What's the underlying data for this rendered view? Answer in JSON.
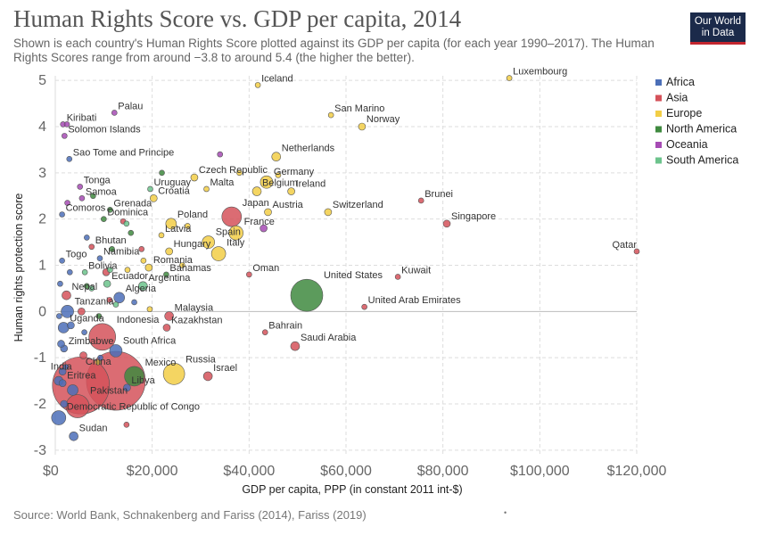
{
  "header": {
    "title": "Human Rights Score vs. GDP per capita, 2014",
    "subtitle": "Shown is each country's Human Rights Score plotted against its GDP per capita (for each year 1990–2017). The Human Rights Scores range from around −3.8 to around 5.4 (the higher the better).",
    "logo_line1": "Our World",
    "logo_line2": "in Data"
  },
  "footer": {
    "source": "Source: World Bank, Schnakenberg and Fariss (2014), Fariss (2019)",
    "dot": "•"
  },
  "colors": {
    "Africa": "#4c6fb8",
    "Asia": "#d5525a",
    "Europe": "#f2ce46",
    "North America": "#3f8a3f",
    "Oceania": "#a64bb4",
    "South America": "#6cc38c"
  },
  "chart_data": {
    "type": "scatter",
    "title": "Human Rights Score vs. GDP per capita, 2014",
    "xlabel": "GDP per capita, PPP (in constant 2011 int-$)",
    "ylabel": "Human rights protection score",
    "xlim": [
      0,
      120000
    ],
    "ylim": [
      -3.1,
      5.1
    ],
    "x_ticks": [
      0,
      20000,
      40000,
      60000,
      80000,
      100000,
      120000
    ],
    "x_tick_labels": [
      "$0",
      "$20,000",
      "$40,000",
      "$60,000",
      "$80,000",
      "$100,000",
      "$120,000"
    ],
    "y_ticks": [
      -3,
      -2,
      -1,
      0,
      1,
      2,
      3,
      4,
      5
    ],
    "y_tick_labels": [
      "-3",
      "-2",
      "-1",
      "0",
      "1",
      "2",
      "3",
      "4",
      "5"
    ],
    "grid": true,
    "legend_position": "right",
    "legend": [
      "Africa",
      "Asia",
      "Europe",
      "North America",
      "Oceania",
      "South America"
    ],
    "points": [
      {
        "label": "Iceland",
        "x": 41800,
        "y": 4.9,
        "region": "Europe",
        "size": 3
      },
      {
        "label": "Luxembourg",
        "x": 93700,
        "y": 5.05,
        "region": "Europe",
        "size": 3
      },
      {
        "label": "San Marino",
        "x": 56900,
        "y": 4.25,
        "region": "Europe",
        "size": 3
      },
      {
        "label": "Norway",
        "x": 63300,
        "y": 4.0,
        "region": "Europe",
        "size": 4
      },
      {
        "label": "Palau",
        "x": 12200,
        "y": 4.3,
        "region": "Oceania",
        "size": 3
      },
      {
        "label": "Kiribati",
        "x": 1600,
        "y": 4.05,
        "region": "Oceania",
        "size": 3
      },
      {
        "label": "Solomon Islands",
        "x": 1900,
        "y": 3.8,
        "region": "Oceania",
        "size": 3
      },
      {
        "label": "Sao Tome and Principe",
        "x": 2900,
        "y": 3.3,
        "region": "Africa",
        "size": 3
      },
      {
        "label": "Netherlands",
        "x": 45600,
        "y": 3.35,
        "region": "Europe",
        "size": 5
      },
      {
        "label": "Czech Republic",
        "x": 28700,
        "y": 2.9,
        "region": "Europe",
        "size": 4
      },
      {
        "label": "Germany",
        "x": 43600,
        "y": 2.8,
        "region": "Europe",
        "size": 7
      },
      {
        "label": "Malta",
        "x": 31200,
        "y": 2.65,
        "region": "Europe",
        "size": 3
      },
      {
        "label": "Belgium",
        "x": 41600,
        "y": 2.6,
        "region": "Europe",
        "size": 5
      },
      {
        "label": "Ireland",
        "x": 48700,
        "y": 2.6,
        "region": "Europe",
        "size": 4
      },
      {
        "label": "Uruguay",
        "x": 19600,
        "y": 2.65,
        "region": "South America",
        "size": 3
      },
      {
        "label": "Tonga",
        "x": 5100,
        "y": 2.7,
        "region": "Oceania",
        "size": 3
      },
      {
        "label": "Samoa",
        "x": 5500,
        "y": 2.45,
        "region": "Oceania",
        "size": 3
      },
      {
        "label": "Croatia",
        "x": 20300,
        "y": 2.45,
        "region": "Europe",
        "size": 4
      },
      {
        "label": "Brunei",
        "x": 75500,
        "y": 2.4,
        "region": "Asia",
        "size": 3
      },
      {
        "label": "Grenada",
        "x": 11300,
        "y": 2.2,
        "region": "North America",
        "size": 3
      },
      {
        "label": "Comoros",
        "x": 1400,
        "y": 2.1,
        "region": "Africa",
        "size": 3
      },
      {
        "label": "Dominica",
        "x": 10000,
        "y": 2.0,
        "region": "North America",
        "size": 3
      },
      {
        "label": "Japan",
        "x": 36400,
        "y": 2.05,
        "region": "Asia",
        "size": 11
      },
      {
        "label": "Austria",
        "x": 43900,
        "y": 2.15,
        "region": "Europe",
        "size": 4
      },
      {
        "label": "Switzerland",
        "x": 56300,
        "y": 2.15,
        "region": "Europe",
        "size": 4
      },
      {
        "label": "Singapore",
        "x": 80800,
        "y": 1.9,
        "region": "Asia",
        "size": 4
      },
      {
        "label": "Poland",
        "x": 23900,
        "y": 1.9,
        "region": "Europe",
        "size": 6
      },
      {
        "label": "France",
        "x": 37300,
        "y": 1.7,
        "region": "Europe",
        "size": 8
      },
      {
        "label": "Latvia",
        "x": 21900,
        "y": 1.65,
        "region": "Europe",
        "size": 3
      },
      {
        "label": "Spain",
        "x": 31600,
        "y": 1.5,
        "region": "Europe",
        "size": 7
      },
      {
        "label": "Qatar",
        "x": 120000,
        "y": 1.3,
        "region": "Asia",
        "size": 3
      },
      {
        "label": "Bhutan",
        "x": 7500,
        "y": 1.4,
        "region": "Asia",
        "size": 3
      },
      {
        "label": "Hungary",
        "x": 23500,
        "y": 1.3,
        "region": "Europe",
        "size": 4
      },
      {
        "label": "Namibia",
        "x": 9200,
        "y": 1.15,
        "region": "Africa",
        "size": 3
      },
      {
        "label": "Italy",
        "x": 33700,
        "y": 1.25,
        "region": "Europe",
        "size": 8
      },
      {
        "label": "Togo",
        "x": 1400,
        "y": 1.1,
        "region": "Africa",
        "size": 3
      },
      {
        "label": "Romania",
        "x": 19300,
        "y": 0.95,
        "region": "Europe",
        "size": 4
      },
      {
        "label": "Bolivia",
        "x": 6100,
        "y": 0.85,
        "region": "South America",
        "size": 3
      },
      {
        "label": "Bahamas",
        "x": 22900,
        "y": 0.8,
        "region": "North America",
        "size": 3
      },
      {
        "label": "Oman",
        "x": 40000,
        "y": 0.8,
        "region": "Asia",
        "size": 3
      },
      {
        "label": "Ecuador",
        "x": 10700,
        "y": 0.6,
        "region": "South America",
        "size": 4
      },
      {
        "label": "Argentina",
        "x": 18100,
        "y": 0.55,
        "region": "South America",
        "size": 5
      },
      {
        "label": "Kuwait",
        "x": 70700,
        "y": 0.75,
        "region": "Asia",
        "size": 3
      },
      {
        "label": "Nepal",
        "x": 2300,
        "y": 0.35,
        "region": "Asia",
        "size": 5
      },
      {
        "label": "Algeria",
        "x": 13200,
        "y": 0.3,
        "region": "Africa",
        "size": 6
      },
      {
        "label": "United States",
        "x": 51900,
        "y": 0.35,
        "region": "North America",
        "size": 18
      },
      {
        "label": "United Arab Emirates",
        "x": 63800,
        "y": 0.1,
        "region": "Asia",
        "size": 3
      },
      {
        "label": "Tanzania",
        "x": 2500,
        "y": 0.0,
        "region": "Africa",
        "size": 7
      },
      {
        "label": "Malaysia",
        "x": 23500,
        "y": -0.1,
        "region": "Asia",
        "size": 5
      },
      {
        "label": "Kazakhstan",
        "x": 23000,
        "y": -0.35,
        "region": "Asia",
        "size": 4
      },
      {
        "label": "Uganda",
        "x": 1700,
        "y": -0.35,
        "region": "Africa",
        "size": 6
      },
      {
        "label": "Indonesia",
        "x": 9700,
        "y": -0.55,
        "region": "Asia",
        "size": 15
      },
      {
        "label": "Bahrain",
        "x": 43300,
        "y": -0.45,
        "region": "Asia",
        "size": 3
      },
      {
        "label": "Zimbabwe",
        "x": 1800,
        "y": -0.8,
        "region": "Africa",
        "size": 4
      },
      {
        "label": "South Africa",
        "x": 12500,
        "y": -0.85,
        "region": "Africa",
        "size": 7
      },
      {
        "label": "Saudi Arabia",
        "x": 49500,
        "y": -0.75,
        "region": "Asia",
        "size": 5
      },
      {
        "label": "Russia",
        "x": 24500,
        "y": -1.35,
        "region": "Europe",
        "size": 12
      },
      {
        "label": "Israel",
        "x": 31500,
        "y": -1.4,
        "region": "Asia",
        "size": 5
      },
      {
        "label": "India",
        "x": 5300,
        "y": -1.6,
        "region": "Asia",
        "size": 32
      },
      {
        "label": "China",
        "x": 12500,
        "y": -1.5,
        "region": "Asia",
        "size": 33
      },
      {
        "label": "Mexico",
        "x": 16300,
        "y": -1.4,
        "region": "North America",
        "size": 11
      },
      {
        "label": "Eritrea",
        "x": 1500,
        "y": -1.55,
        "region": "Africa",
        "size": 4
      },
      {
        "label": "Libya",
        "x": 14800,
        "y": -1.65,
        "region": "Africa",
        "size": 4
      },
      {
        "label": "Pakistan",
        "x": 4600,
        "y": -2.05,
        "region": "Asia",
        "size": 13
      },
      {
        "label": "Democratic Republic of Congo",
        "x": 700,
        "y": -2.3,
        "region": "Africa",
        "size": 8
      },
      {
        "label": "Sudan",
        "x": 3800,
        "y": -2.7,
        "region": "Africa",
        "size": 5
      },
      {
        "label": "",
        "x": 1200,
        "y": -0.7,
        "region": "Africa",
        "size": 4
      },
      {
        "label": "",
        "x": 800,
        "y": -0.1,
        "region": "Africa",
        "size": 3
      },
      {
        "label": "",
        "x": 3200,
        "y": -0.3,
        "region": "Africa",
        "size": 4
      },
      {
        "label": "",
        "x": 1000,
        "y": 0.6,
        "region": "Africa",
        "size": 3
      },
      {
        "label": "",
        "x": 1500,
        "y": -1.3,
        "region": "Africa",
        "size": 4
      },
      {
        "label": "",
        "x": 2200,
        "y": -1.2,
        "region": "Africa",
        "size": 3
      },
      {
        "label": "",
        "x": 700,
        "y": -1.5,
        "region": "Africa",
        "size": 5
      },
      {
        "label": "",
        "x": 1800,
        "y": -2.0,
        "region": "Africa",
        "size": 4
      },
      {
        "label": "",
        "x": 3600,
        "y": -1.7,
        "region": "Africa",
        "size": 6
      },
      {
        "label": "",
        "x": 9300,
        "y": -1.0,
        "region": "Africa",
        "size": 3
      },
      {
        "label": "",
        "x": 6000,
        "y": -0.45,
        "region": "Africa",
        "size": 3
      },
      {
        "label": "",
        "x": 3000,
        "y": 0.85,
        "region": "Africa",
        "size": 3
      },
      {
        "label": "",
        "x": 6500,
        "y": 1.6,
        "region": "Africa",
        "size": 3
      },
      {
        "label": "",
        "x": 16300,
        "y": 0.2,
        "region": "Africa",
        "size": 3
      },
      {
        "label": "",
        "x": 17800,
        "y": 1.35,
        "region": "Asia",
        "size": 3
      },
      {
        "label": "",
        "x": 10500,
        "y": 0.85,
        "region": "Asia",
        "size": 4
      },
      {
        "label": "",
        "x": 5800,
        "y": -0.95,
        "region": "Asia",
        "size": 4
      },
      {
        "label": "",
        "x": 14700,
        "y": -2.45,
        "region": "Asia",
        "size": 3
      },
      {
        "label": "",
        "x": 14000,
        "y": 1.95,
        "region": "Asia",
        "size": 3
      },
      {
        "label": "",
        "x": 11200,
        "y": 0.25,
        "region": "Asia",
        "size": 3
      },
      {
        "label": "",
        "x": 5400,
        "y": 0.0,
        "region": "Asia",
        "size": 4
      },
      {
        "label": "",
        "x": 26200,
        "y": 1.0,
        "region": "Europe",
        "size": 3
      },
      {
        "label": "",
        "x": 18200,
        "y": 1.1,
        "region": "Europe",
        "size": 3
      },
      {
        "label": "",
        "x": 14900,
        "y": 0.9,
        "region": "Europe",
        "size": 3
      },
      {
        "label": "",
        "x": 19500,
        "y": 0.05,
        "region": "Europe",
        "size": 3
      },
      {
        "label": "",
        "x": 27300,
        "y": 1.85,
        "region": "Europe",
        "size": 3
      },
      {
        "label": "",
        "x": 38000,
        "y": 3.0,
        "region": "Europe",
        "size": 3
      },
      {
        "label": "",
        "x": 46000,
        "y": 2.95,
        "region": "Europe",
        "size": 3
      },
      {
        "label": "",
        "x": 8800,
        "y": -1.1,
        "region": "Europe",
        "size": 3
      },
      {
        "label": "",
        "x": 11700,
        "y": 1.35,
        "region": "North America",
        "size": 3
      },
      {
        "label": "",
        "x": 15600,
        "y": 1.7,
        "region": "North America",
        "size": 3
      },
      {
        "label": "",
        "x": 6500,
        "y": 0.55,
        "region": "North America",
        "size": 3
      },
      {
        "label": "",
        "x": 7800,
        "y": 2.5,
        "region": "North America",
        "size": 3
      },
      {
        "label": "",
        "x": 22000,
        "y": 3.0,
        "region": "North America",
        "size": 3
      },
      {
        "label": "",
        "x": 9000,
        "y": -0.1,
        "region": "North America",
        "size": 3
      },
      {
        "label": "",
        "x": 34000,
        "y": 3.4,
        "region": "Oceania",
        "size": 3
      },
      {
        "label": "",
        "x": 43000,
        "y": 1.8,
        "region": "Oceania",
        "size": 4
      },
      {
        "label": "",
        "x": 2500,
        "y": 2.35,
        "region": "Oceania",
        "size": 3
      },
      {
        "label": "",
        "x": 2400,
        "y": 4.05,
        "region": "Oceania",
        "size": 3
      },
      {
        "label": "",
        "x": 12500,
        "y": 0.15,
        "region": "South America",
        "size": 3
      },
      {
        "label": "",
        "x": 14700,
        "y": 1.9,
        "region": "South America",
        "size": 3
      },
      {
        "label": "",
        "x": 11300,
        "y": 0.9,
        "region": "South America",
        "size": 3
      },
      {
        "label": "",
        "x": 7500,
        "y": 0.5,
        "region": "South America",
        "size": 3
      }
    ]
  }
}
